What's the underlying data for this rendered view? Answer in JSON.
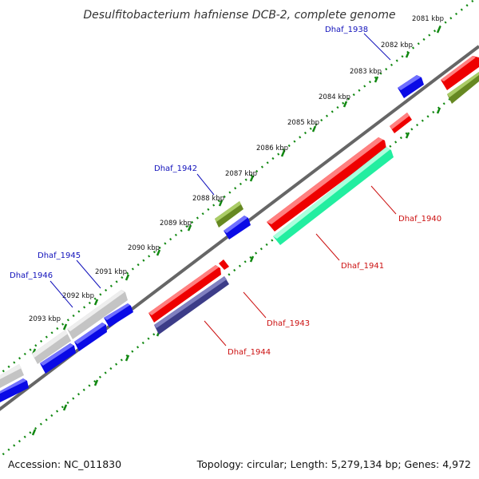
{
  "title": "Desulfitobacterium hafniense DCB-2, complete genome",
  "footer": {
    "accession": "Accession: NC_011830",
    "summary": "Topology: circular; Length: 5,279,134 bp; Genes: 4,972"
  },
  "colors": {
    "tick": "#118811",
    "backbone": "#666666",
    "label_blue": "#1111bb",
    "label_red": "#cc1111",
    "red": "#ee0000",
    "blue": "#0a0ae6",
    "olive": "#668822",
    "gray": "#c4c4c4",
    "navy": "#3c3c88",
    "teal": "#22eea0"
  },
  "kbp_labels": [
    "2081 kbp",
    "2082 kbp",
    "2083 kbp",
    "2084 kbp",
    "2085 kbp",
    "2086 kbp",
    "2087 kbp",
    "2088 kbp",
    "2089 kbp",
    "2090 kbp",
    "2091 kbp",
    "2092 kbp",
    "2093 kbp"
  ],
  "gene_labels": [
    "Dhaf_1938",
    "Dhaf_1940",
    "Dhaf_1941",
    "Dhaf_1942",
    "Dhaf_1943",
    "Dhaf_1944",
    "Dhaf_1945",
    "Dhaf_1946"
  ]
}
